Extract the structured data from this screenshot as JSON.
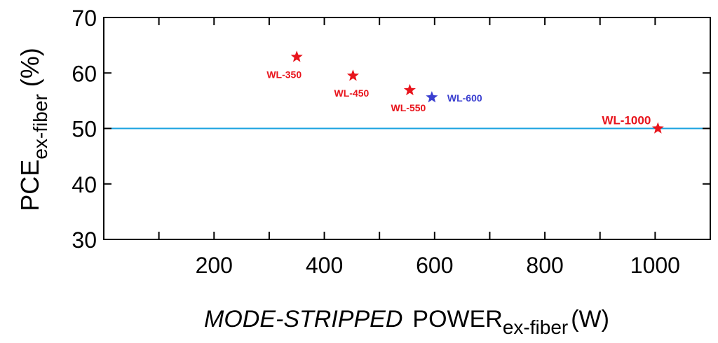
{
  "chart_data": {
    "type": "scatter",
    "title": "",
    "xlabel": {
      "italic_part": "MODE-STRIPPED",
      "main": "POWER",
      "subscript": "ex-fiber",
      "unit": "(W)"
    },
    "ylabel": {
      "main": "PCE",
      "subscript": "ex-fiber",
      "unit": "(%)"
    },
    "xlim": [
      0,
      1100
    ],
    "ylim": [
      30,
      70
    ],
    "x_ticks": [
      200,
      400,
      600,
      800,
      1000
    ],
    "x_tick_labels": [
      "200",
      "400",
      "600",
      "800",
      "1000"
    ],
    "x_minor_ticks": [
      100,
      300,
      500,
      700,
      900
    ],
    "y_ticks": [
      30,
      40,
      50,
      60,
      70
    ],
    "y_tick_labels": [
      "30",
      "40",
      "50",
      "60",
      "70"
    ],
    "grid": false,
    "reference_line": {
      "y": 50,
      "color": "#1aa3e0"
    },
    "points": [
      {
        "label": "WL-350",
        "x": 350,
        "y": 62.9,
        "color": "#e8141c",
        "label_pos": "below-left",
        "bold_large": false
      },
      {
        "label": "WL-450",
        "x": 452,
        "y": 59.5,
        "color": "#e8141c",
        "label_pos": "below",
        "bold_large": false
      },
      {
        "label": "WL-550",
        "x": 555,
        "y": 56.9,
        "color": "#e8141c",
        "label_pos": "below",
        "bold_large": false
      },
      {
        "label": "WL-600",
        "x": 595,
        "y": 55.6,
        "color": "#3a3fd0",
        "label_pos": "right",
        "bold_large": false
      },
      {
        "label": "WL-1000",
        "x": 1005,
        "y": 50.0,
        "color": "#e8141c",
        "label_pos": "upper-left",
        "bold_large": true
      }
    ]
  }
}
